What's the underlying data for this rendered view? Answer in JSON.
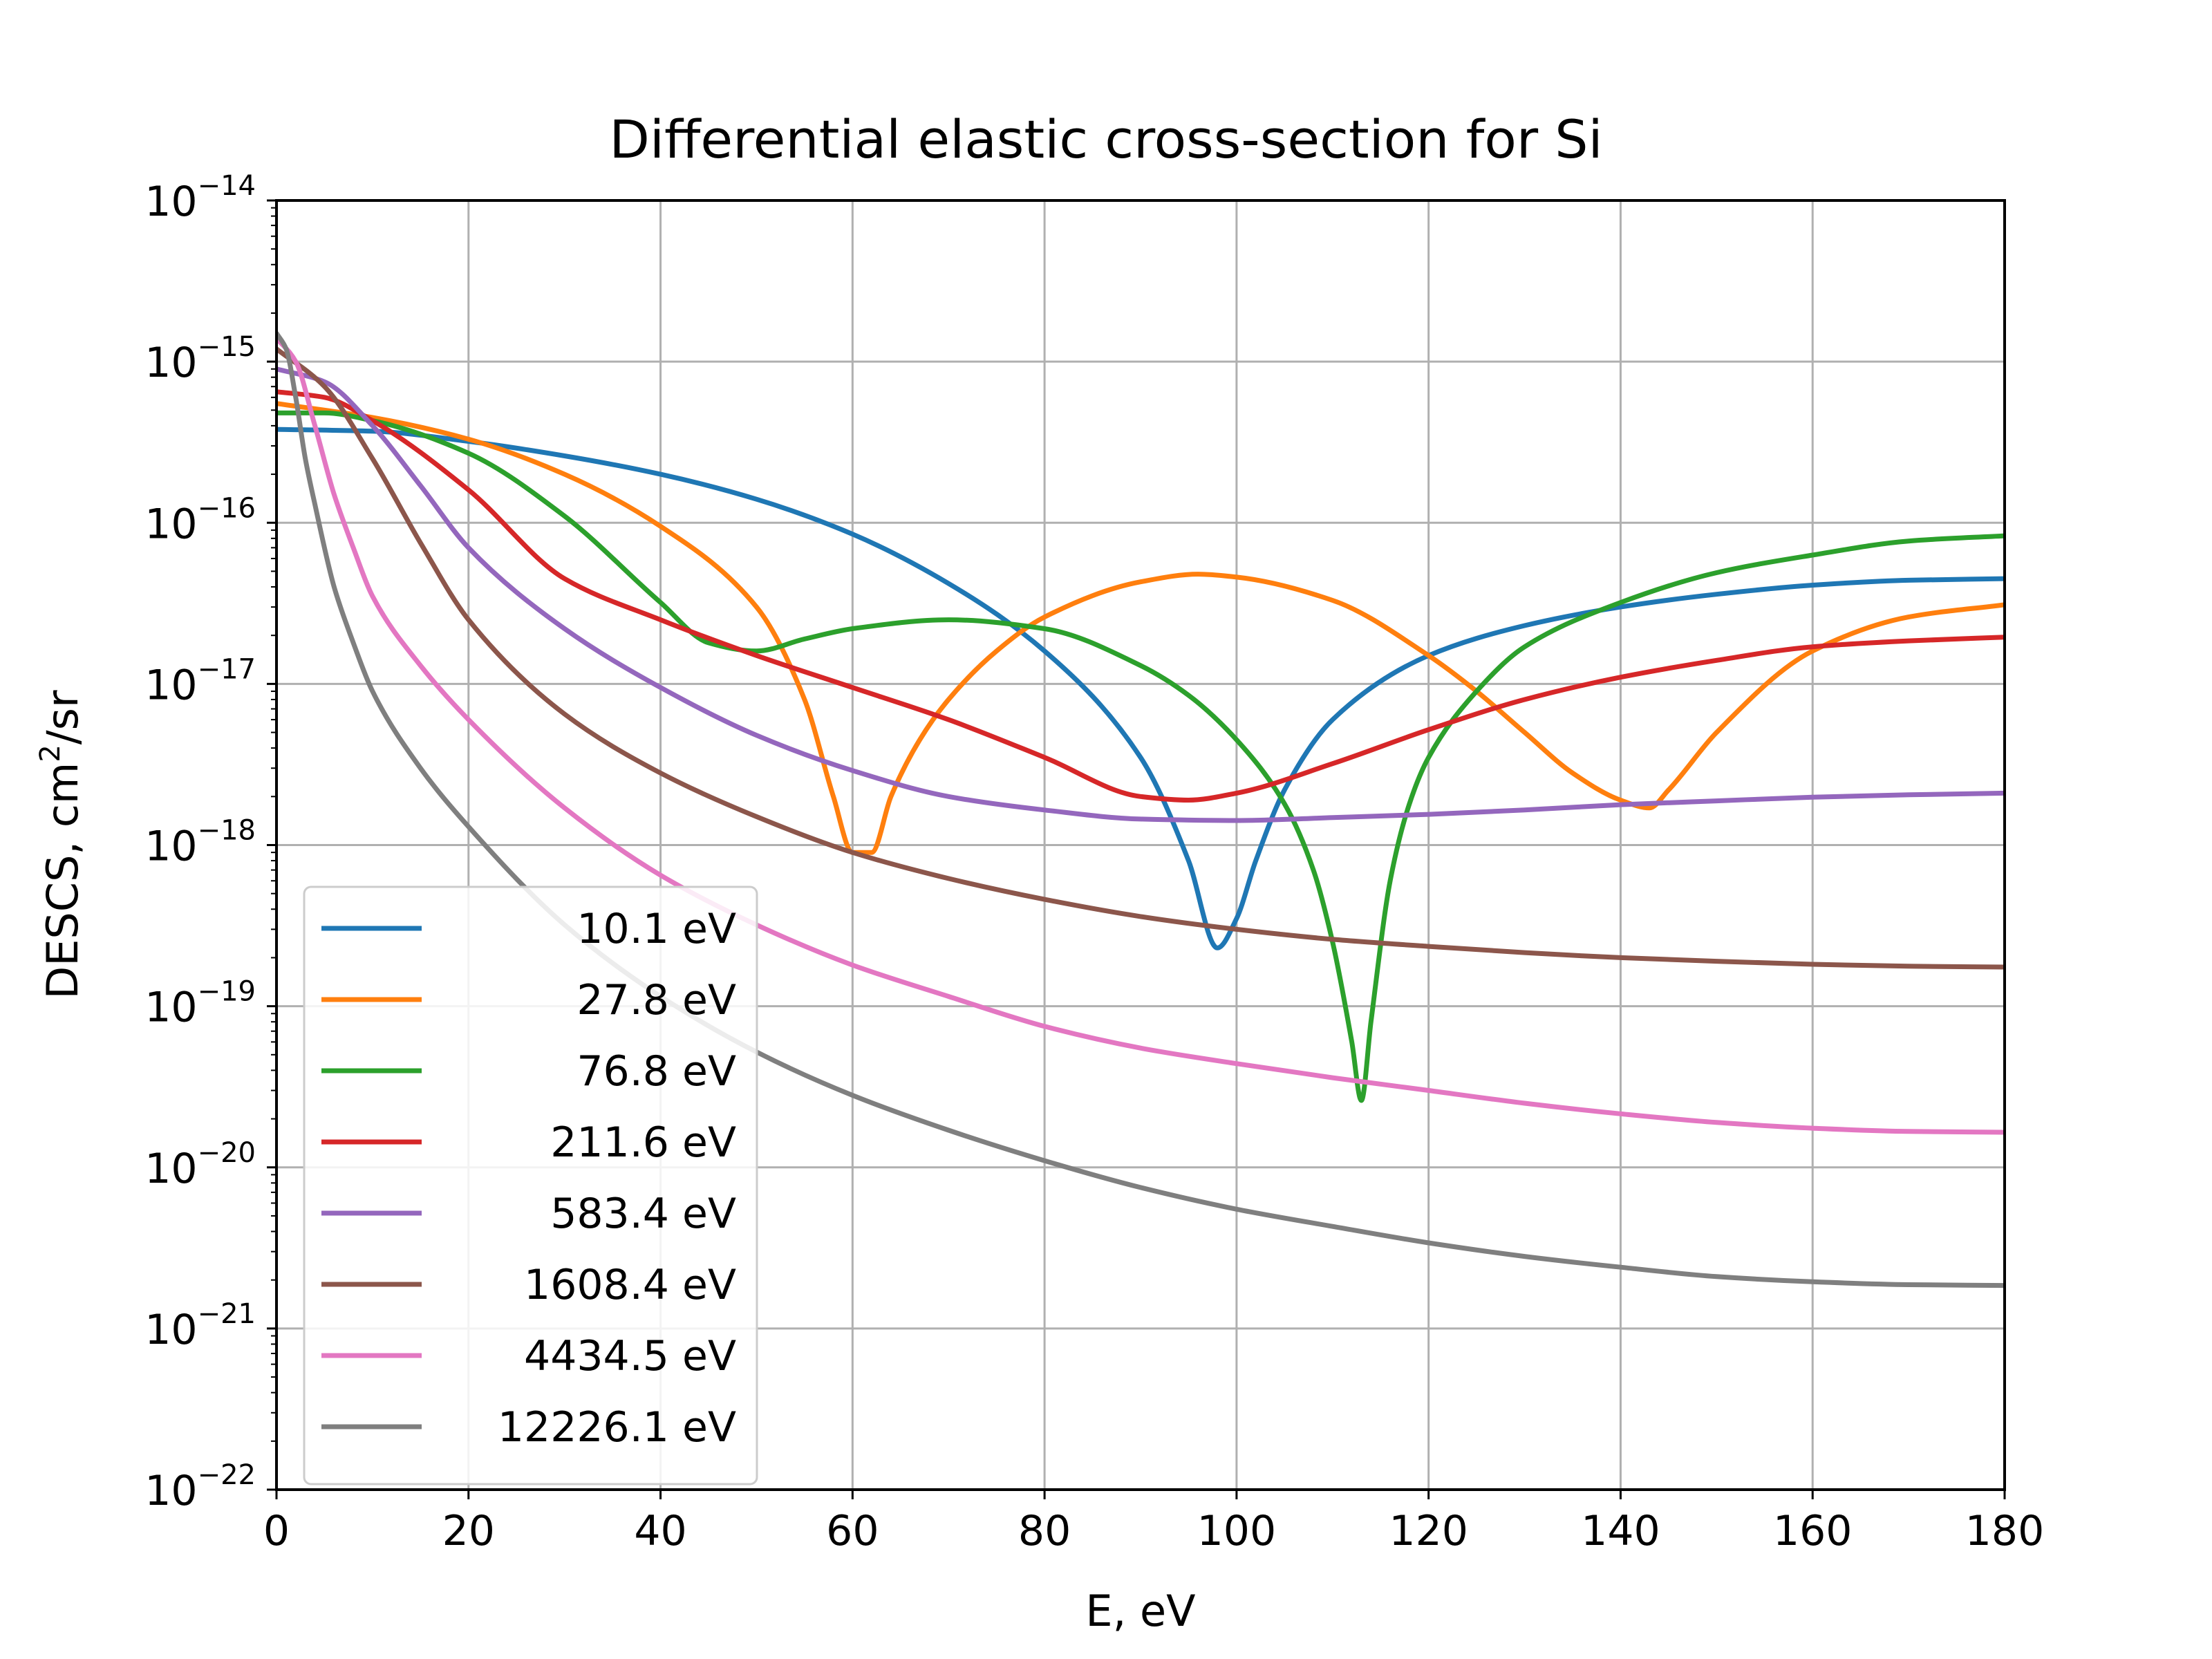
{
  "chart_data": {
    "type": "line",
    "title": "Differential elastic cross-section for Si",
    "xlabel": "E, eV",
    "ylabel": "DESCS, cm²/sr",
    "ylabel_parts": {
      "base": "DESCS, cm",
      "sup": "2",
      "suffix": "/sr"
    },
    "xlim": [
      0,
      180
    ],
    "ylim": [
      1e-22,
      1e-14
    ],
    "yscale": "log",
    "grid": true,
    "legend_position": "lower-left",
    "x_ticks": [
      "0",
      "20",
      "40",
      "60",
      "80",
      "100",
      "120",
      "140",
      "160",
      "180"
    ],
    "y_ticks": [
      {
        "base": "10",
        "exp": "−14"
      },
      {
        "base": "10",
        "exp": "−15"
      },
      {
        "base": "10",
        "exp": "−16"
      },
      {
        "base": "10",
        "exp": "−17"
      },
      {
        "base": "10",
        "exp": "−18"
      },
      {
        "base": "10",
        "exp": "−19"
      },
      {
        "base": "10",
        "exp": "−20"
      },
      {
        "base": "10",
        "exp": "−21"
      },
      {
        "base": "10",
        "exp": "−22"
      }
    ],
    "series": [
      {
        "name": "10.1 eV",
        "color": "#1f77b4",
        "x": [
          0,
          10,
          20,
          30,
          40,
          50,
          60,
          70,
          80,
          90,
          95,
          98,
          100,
          102,
          105,
          110,
          120,
          130,
          140,
          150,
          160,
          170,
          180
        ],
        "y": [
          3.8e-16,
          3.7e-16,
          3.2e-16,
          2.6e-16,
          2e-16,
          1.4e-16,
          8.5e-17,
          4.2e-17,
          1.6e-17,
          3.5e-18,
          8e-19,
          2.3e-19,
          3.5e-19,
          8e-19,
          2.2e-18,
          6e-18,
          1.5e-17,
          2.3e-17,
          3e-17,
          3.6e-17,
          4.1e-17,
          4.4e-17,
          4.5e-17
        ]
      },
      {
        "name": "27.8 eV",
        "color": "#ff7f0e",
        "x": [
          0,
          10,
          20,
          30,
          40,
          50,
          55,
          58,
          60,
          62,
          64,
          67,
          70,
          75,
          80,
          90,
          96,
          100,
          110,
          120,
          125,
          130,
          135,
          140,
          143,
          145,
          150,
          160,
          170,
          180
        ],
        "y": [
          5.5e-16,
          4.5e-16,
          3.3e-16,
          2e-16,
          9.5e-17,
          3e-17,
          8e-18,
          2e-18,
          9e-19,
          9e-19,
          2e-18,
          4.5e-18,
          8e-18,
          1.6e-17,
          2.6e-17,
          4.3e-17,
          4.8e-17,
          4.6e-17,
          3.3e-17,
          1.5e-17,
          9e-18,
          5e-18,
          2.8e-18,
          1.9e-18,
          1.7e-18,
          2.2e-18,
          5e-18,
          1.6e-17,
          2.6e-17,
          3.1e-17
        ]
      },
      {
        "name": "76.8 eV",
        "color": "#2ca02c",
        "x": [
          0,
          5,
          10,
          20,
          30,
          40,
          45,
          50,
          55,
          60,
          70,
          80,
          90,
          95,
          100,
          105,
          108,
          110,
          112,
          113,
          114,
          116,
          118,
          120,
          125,
          130,
          140,
          150,
          160,
          170,
          180
        ],
        "y": [
          4.8e-16,
          4.8e-16,
          4.3e-16,
          2.7e-16,
          1.1e-16,
          3.2e-17,
          1.8e-17,
          1.6e-17,
          1.9e-17,
          2.2e-17,
          2.5e-17,
          2.2e-17,
          1.3e-17,
          8.5e-18,
          4.5e-18,
          1.8e-18,
          7e-19,
          2.5e-19,
          6e-20,
          2.6e-20,
          8e-20,
          6e-19,
          1.8e-18,
          3.5e-18,
          9e-18,
          1.7e-17,
          3.2e-17,
          4.9e-17,
          6.3e-17,
          7.7e-17,
          8.3e-17
        ]
      },
      {
        "name": "211.6 eV",
        "color": "#d62728",
        "x": [
          0,
          5,
          10,
          20,
          30,
          40,
          50,
          60,
          70,
          80,
          90,
          95,
          100,
          110,
          120,
          130,
          140,
          150,
          160,
          170,
          180
        ],
        "y": [
          6.5e-16,
          6e-16,
          4.3e-16,
          1.6e-16,
          4.5e-17,
          2.5e-17,
          1.5e-17,
          9.5e-18,
          6e-18,
          3.5e-18,
          2e-18,
          1.9e-18,
          2.1e-18,
          3.2e-18,
          5.2e-18,
          8e-18,
          1.1e-17,
          1.4e-17,
          1.7e-17,
          1.85e-17,
          1.95e-17
        ]
      },
      {
        "name": "583.4 eV",
        "color": "#9467bd",
        "x": [
          0,
          5,
          10,
          15,
          20,
          30,
          40,
          50,
          60,
          70,
          80,
          90,
          100,
          110,
          120,
          130,
          140,
          150,
          160,
          170,
          180
        ],
        "y": [
          9e-16,
          7.5e-16,
          4e-16,
          1.7e-16,
          7e-17,
          2.2e-17,
          9.5e-18,
          4.8e-18,
          2.9e-18,
          2e-18,
          1.65e-18,
          1.45e-18,
          1.42e-18,
          1.48e-18,
          1.55e-18,
          1.65e-18,
          1.78e-18,
          1.88e-18,
          1.98e-18,
          2.05e-18,
          2.1e-18
        ]
      },
      {
        "name": "1608.4 eV",
        "color": "#8c564b",
        "x": [
          0,
          5,
          10,
          15,
          20,
          30,
          40,
          50,
          60,
          70,
          80,
          90,
          100,
          110,
          120,
          130,
          140,
          150,
          160,
          170,
          180
        ],
        "y": [
          1.2e-15,
          7e-16,
          2.5e-16,
          7.5e-17,
          2.5e-17,
          6.5e-18,
          2.8e-18,
          1.5e-18,
          9e-19,
          6.2e-19,
          4.6e-19,
          3.6e-19,
          3e-19,
          2.6e-19,
          2.35e-19,
          2.15e-19,
          2e-19,
          1.9e-19,
          1.82e-19,
          1.77e-19,
          1.75e-19
        ]
      },
      {
        "name": "4434.5 eV",
        "color": "#e377c2",
        "x": [
          0,
          2,
          4,
          6,
          8,
          10,
          15,
          20,
          30,
          40,
          50,
          60,
          70,
          80,
          90,
          100,
          110,
          120,
          130,
          140,
          150,
          160,
          170,
          180
        ],
        "y": [
          1.4e-15,
          1e-15,
          4e-16,
          1.5e-16,
          7e-17,
          3.5e-17,
          1.3e-17,
          6e-18,
          1.7e-18,
          6.5e-19,
          3.2e-19,
          1.8e-19,
          1.15e-19,
          7.5e-20,
          5.5e-20,
          4.4e-20,
          3.6e-20,
          3e-20,
          2.5e-20,
          2.15e-20,
          1.9e-20,
          1.75e-20,
          1.67e-20,
          1.65e-20
        ]
      },
      {
        "name": "12226.1 eV",
        "color": "#7f7f7f",
        "x": [
          0,
          1,
          2,
          3,
          4,
          6,
          8,
          10,
          15,
          20,
          30,
          40,
          50,
          60,
          70,
          80,
          90,
          100,
          110,
          120,
          130,
          140,
          150,
          160,
          170,
          180
        ],
        "y": [
          1.5e-15,
          1.2e-15,
          6e-16,
          2.5e-16,
          1.3e-16,
          4e-17,
          1.8e-17,
          9e-18,
          3e-18,
          1.3e-18,
          3.2e-19,
          1.15e-19,
          5.2e-20,
          2.8e-20,
          1.7e-20,
          1.1e-20,
          7.5e-21,
          5.5e-21,
          4.3e-21,
          3.4e-21,
          2.8e-21,
          2.4e-21,
          2.1e-21,
          1.95e-21,
          1.87e-21,
          1.85e-21
        ]
      }
    ]
  }
}
